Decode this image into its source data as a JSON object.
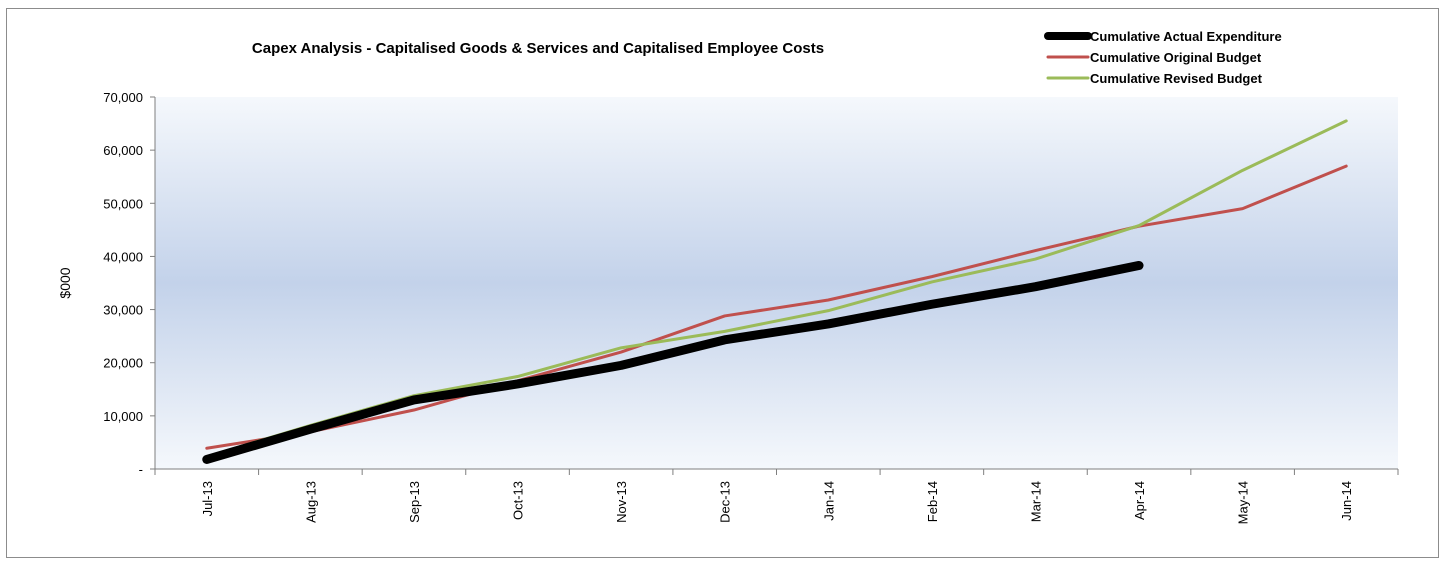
{
  "chart_data": {
    "type": "line",
    "title": "Capex Analysis - Capitalised Goods & Services and Capitalised  Employee Costs",
    "xlabel": "",
    "ylabel": "$000",
    "ylim": [
      0,
      70000
    ],
    "yticks": [
      {
        "value": 0,
        "label": "-"
      },
      {
        "value": 10000,
        "label": "10,000"
      },
      {
        "value": 20000,
        "label": "20,000"
      },
      {
        "value": 30000,
        "label": "30,000"
      },
      {
        "value": 40000,
        "label": "40,000"
      },
      {
        "value": 50000,
        "label": "50,000"
      },
      {
        "value": 60000,
        "label": "60,000"
      },
      {
        "value": 70000,
        "label": "70,000"
      }
    ],
    "categories": [
      "Jul-13",
      "Aug-13",
      "Sep-13",
      "Oct-13",
      "Nov-13",
      "Dec-13",
      "Jan-14",
      "Feb-14",
      "Mar-14",
      "Apr-14",
      "May-14",
      "Jun-14"
    ],
    "grid": false,
    "legend_position": "top-right",
    "series": [
      {
        "name": "Cumulative Actual Expenditure",
        "color": "#000000",
        "values": [
          1800,
          7500,
          13000,
          16000,
          19500,
          24300,
          27300,
          31000,
          34300,
          38300,
          null,
          null
        ]
      },
      {
        "name": "Cumulative Original Budget",
        "color": "#c0504d",
        "values": [
          3900,
          7000,
          11100,
          16600,
          22000,
          28800,
          31800,
          36200,
          41100,
          45700,
          49000,
          57000
        ]
      },
      {
        "name": "Cumulative Revised Budget",
        "color": "#9bbb59",
        "values": [
          2300,
          8200,
          13800,
          17400,
          22800,
          25900,
          29800,
          35200,
          39500,
          45800,
          56200,
          65500
        ]
      }
    ]
  }
}
